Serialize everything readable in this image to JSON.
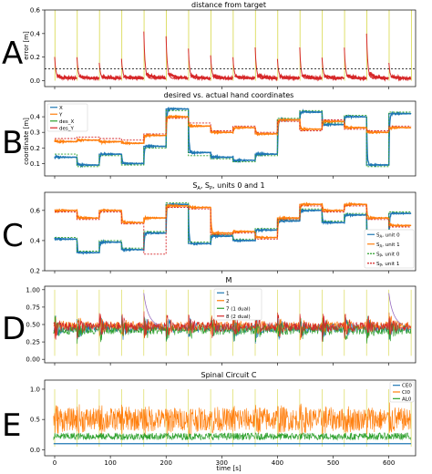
{
  "colors": {
    "blue": "#1f77b4",
    "orange": "#ff7f0e",
    "green": "#2ca02c",
    "red": "#d62728",
    "yellow": "#dbdb5a",
    "purple": "#9467bd"
  },
  "xlabel": "time [s]",
  "xticks": [
    0,
    100,
    200,
    300,
    400,
    500,
    600
  ],
  "chart_data": [
    {
      "type": "line",
      "panel_letter": "A",
      "title": "distance from target",
      "ylabel": "error [m]",
      "xlim": [
        -18,
        648
      ],
      "ylim": [
        -0.05,
        0.6
      ],
      "yticks": [
        0.0,
        0.2,
        0.4,
        0.6
      ],
      "threshold": 0.1,
      "spike_times": [
        0,
        40,
        80,
        120,
        160,
        200,
        240,
        280,
        320,
        360,
        400,
        440,
        480,
        520,
        560,
        600,
        640
      ],
      "series": [
        {
          "name": "",
          "color": "#d62728",
          "start_values": [
            0.2,
            0.2,
            0.15,
            0.19,
            0.42,
            0.38,
            0.27,
            0.22,
            0.2,
            0.28,
            0.18,
            0.28,
            0.2,
            0.28,
            0.4,
            0.15
          ]
        }
      ]
    },
    {
      "type": "line",
      "panel_letter": "B",
      "title": "desired vs. actual hand coordinates",
      "ylabel": "coordinate [m]",
      "xlim": [
        -18,
        648
      ],
      "ylim": [
        0.02,
        0.5
      ],
      "yticks": [
        0.1,
        0.2,
        0.3,
        0.4
      ],
      "segment_times": [
        0,
        40,
        80,
        120,
        160,
        200,
        240,
        280,
        320,
        360,
        400,
        440,
        480,
        520,
        560,
        600,
        640
      ],
      "series": [
        {
          "name": "X",
          "color": "#1f77b4",
          "values": [
            0.14,
            0.09,
            0.16,
            0.1,
            0.21,
            0.45,
            0.17,
            0.14,
            0.12,
            0.16,
            0.38,
            0.43,
            0.35,
            0.4,
            0.09,
            0.42
          ]
        },
        {
          "name": "Y",
          "color": "#ff7f0e",
          "values": [
            0.24,
            0.25,
            0.24,
            0.23,
            0.28,
            0.4,
            0.34,
            0.3,
            0.33,
            0.29,
            0.38,
            0.32,
            0.37,
            0.33,
            0.3,
            0.33
          ]
        },
        {
          "name": "des_X",
          "color": "#2ca02c",
          "values": [
            0.16,
            0.08,
            0.15,
            0.09,
            0.2,
            0.44,
            0.15,
            0.13,
            0.11,
            0.15,
            0.39,
            0.44,
            0.36,
            0.41,
            0.08,
            0.43
          ]
        },
        {
          "name": "des_Y",
          "color": "#d62728",
          "values": [
            0.26,
            0.27,
            0.26,
            0.25,
            0.29,
            0.39,
            0.36,
            0.31,
            0.34,
            0.3,
            0.37,
            0.31,
            0.38,
            0.32,
            0.31,
            0.34
          ]
        }
      ]
    },
    {
      "type": "line",
      "panel_letter": "C",
      "title": "S_A, S_P, units 0 and 1",
      "ylabel": "",
      "xlim": [
        -18,
        648
      ],
      "ylim": [
        0.2,
        0.72
      ],
      "yticks": [
        0.2,
        0.4,
        0.6
      ],
      "segment_times": [
        0,
        40,
        80,
        120,
        160,
        200,
        240,
        280,
        320,
        360,
        400,
        440,
        480,
        520,
        560,
        600,
        640
      ],
      "series": [
        {
          "name": "S_A, unit 0",
          "color": "#1f77b4",
          "style": "solid",
          "values": [
            0.41,
            0.32,
            0.39,
            0.34,
            0.45,
            0.64,
            0.38,
            0.43,
            0.4,
            0.47,
            0.53,
            0.6,
            0.52,
            0.57,
            0.36,
            0.58
          ]
        },
        {
          "name": "S_A, unit 1",
          "color": "#ff7f0e",
          "style": "solid",
          "values": [
            0.6,
            0.55,
            0.6,
            0.52,
            0.55,
            0.63,
            0.62,
            0.45,
            0.46,
            0.42,
            0.55,
            0.64,
            0.6,
            0.64,
            0.55,
            0.5
          ]
        },
        {
          "name": "S_P, unit 0",
          "color": "#2ca02c",
          "style": "dashed",
          "values": [
            0.42,
            0.33,
            0.4,
            0.35,
            0.46,
            0.65,
            0.39,
            0.44,
            0.41,
            0.48,
            0.54,
            0.61,
            0.53,
            0.58,
            0.37,
            0.59
          ]
        },
        {
          "name": "S_P, unit 1",
          "color": "#d62728",
          "style": "dashed",
          "values": [
            0.59,
            0.54,
            0.59,
            0.51,
            0.31,
            0.62,
            0.61,
            0.44,
            0.45,
            0.41,
            0.54,
            0.63,
            0.59,
            0.63,
            0.54,
            0.49
          ]
        }
      ]
    },
    {
      "type": "line",
      "panel_letter": "D",
      "title": "M",
      "ylabel": "",
      "xlim": [
        -18,
        648
      ],
      "ylim": [
        -0.05,
        1.05
      ],
      "yticks": [
        0.0,
        0.25,
        0.5,
        0.75,
        1.0
      ],
      "series": [
        {
          "name": "1",
          "color": "#1f77b4",
          "level": 0.45
        },
        {
          "name": "2",
          "color": "#ff7f0e",
          "level": 0.48
        },
        {
          "name": "7 (1 dual)",
          "color": "#2ca02c",
          "level": 0.42
        },
        {
          "name": "8 (2 dual)",
          "color": "#d62728",
          "level": 0.47
        }
      ]
    },
    {
      "type": "line",
      "panel_letter": "E",
      "title": "Spinal Circuit C",
      "ylabel": "",
      "xlim": [
        -18,
        648
      ],
      "ylim": [
        -0.1,
        1.15
      ],
      "yticks": [
        0.0,
        0.5,
        1.0
      ],
      "series": [
        {
          "name": "CE0",
          "color": "#1f77b4",
          "level": 0.1
        },
        {
          "name": "CI0",
          "color": "#ff7f0e",
          "level": 0.45
        },
        {
          "name": "AL0",
          "color": "#2ca02c",
          "level": 0.2
        }
      ]
    }
  ]
}
